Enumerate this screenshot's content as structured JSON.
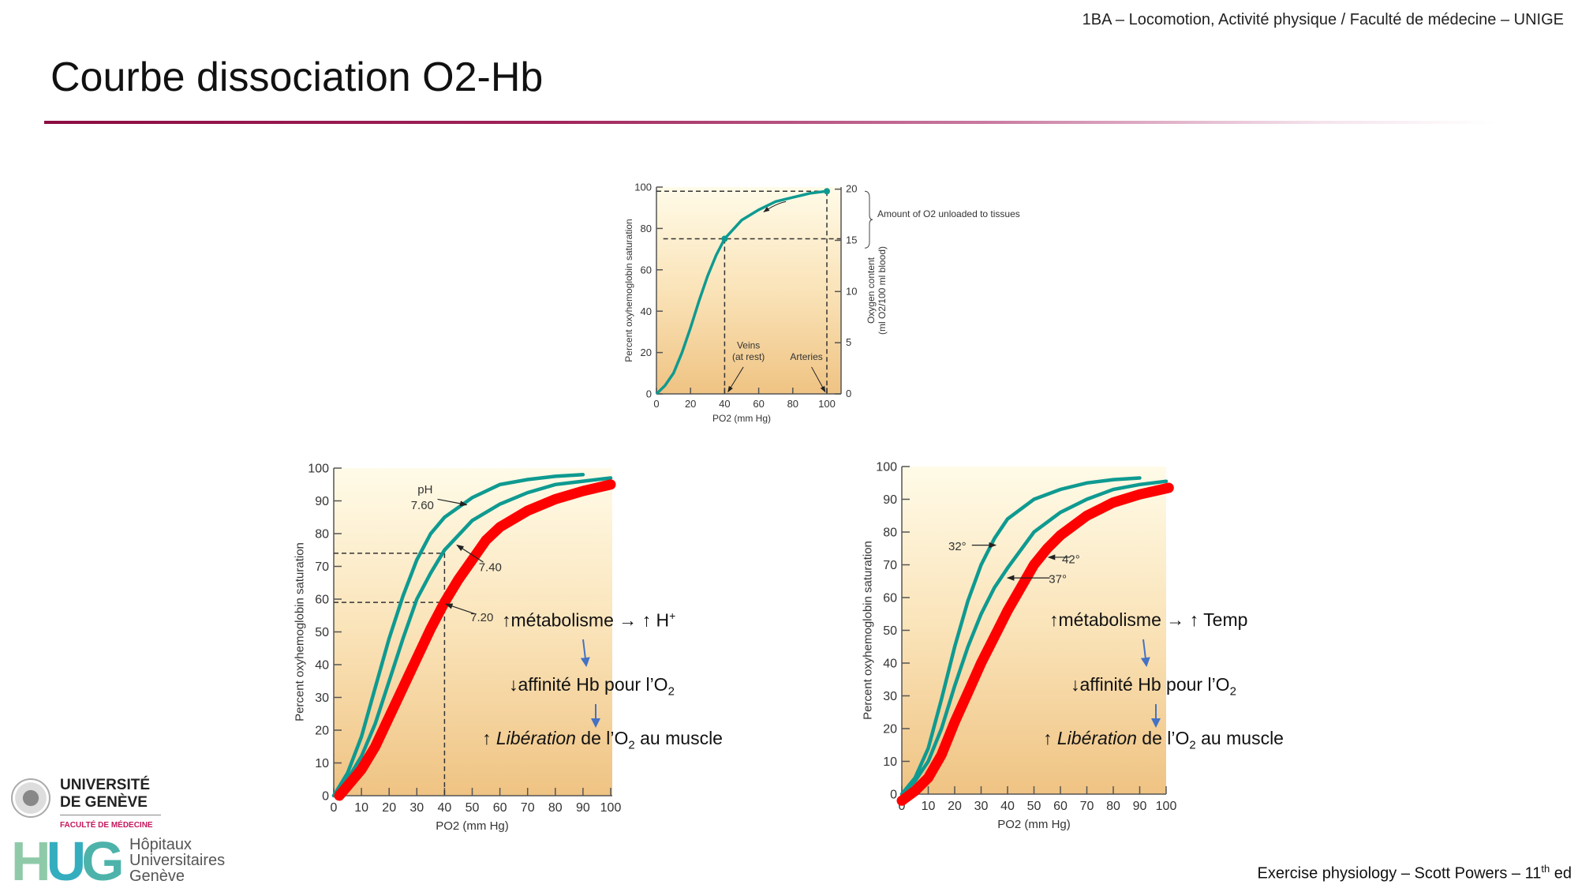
{
  "header": {
    "course": "1BA – Locomotion, Activité physique / Faculté de médecine – UNIGE"
  },
  "title": "Courbe dissociation O2-Hb",
  "footer": {
    "source": "Exercise physiology – Scott Powers – 11",
    "sup": "th",
    "edition": " ed"
  },
  "logos": {
    "unige_line1": "UNIVERSITÉ",
    "unige_line2": "DE GENÈVE",
    "unige_faculty": "FACULTÉ DE MÉDECINE",
    "hug_letters": "HUG",
    "hug_line1": "Hôpitaux",
    "hug_line2": "Universitaires",
    "hug_line3": "Genève"
  },
  "annotations_left": {
    "line1_prefix": "↑métabolisme ",
    "line1_arrow": "→",
    "line1_suffix": " ↑ H",
    "line1_sup": "+",
    "line2": "↓affinité Hb pour l’O",
    "line2_sub": "2",
    "line3_prefix": "↑ ",
    "line3_italic": "Libération",
    "line3_mid": " de l’O",
    "line3_sub": "2",
    "line3_suffix": " au muscle"
  },
  "annotations_right": {
    "line1_prefix": "↑métabolisme ",
    "line1_arrow": "→",
    "line1_suffix": " ↑ Temp",
    "line2": "↓affinité Hb pour l’O",
    "line2_sub": "2",
    "line3_prefix": "↑ ",
    "line3_italic": "Libération",
    "line3_mid": " de l’O",
    "line3_sub": "2",
    "line3_suffix": " au muscle"
  },
  "colors": {
    "teal": "#0e9a91",
    "red": "#ff0000",
    "blue_arrow": "#4472c4",
    "rule": "#8c0c42"
  },
  "chart_data": [
    {
      "type": "line",
      "title": "",
      "xlabel": "PO2 (mm Hg)",
      "ylabel": "Percent oxyhemoglobin saturation",
      "y2label_line1": "Oxygen content",
      "y2label_line2": "(ml O2/100 ml blood)",
      "xlim": [
        0,
        108
      ],
      "ylim": [
        0,
        100
      ],
      "y2lim": [
        0,
        20
      ],
      "xticks": [
        "0",
        "20",
        "40",
        "60",
        "80",
        "100"
      ],
      "yticks": [
        "0",
        "20",
        "40",
        "60",
        "80",
        "100"
      ],
      "y2ticks": [
        "0",
        "5",
        "10",
        "15",
        "20"
      ],
      "series": [
        {
          "name": "Oxyhemoglobin",
          "x": [
            0,
            5,
            10,
            15,
            20,
            25,
            30,
            35,
            40,
            50,
            60,
            70,
            80,
            90,
            100
          ],
          "y": [
            0,
            4,
            10,
            20,
            32,
            45,
            57,
            67,
            75,
            84,
            89,
            93,
            95,
            97,
            98
          ]
        }
      ],
      "markers": [
        {
          "x": 40,
          "y": 75
        },
        {
          "x": 100,
          "y": 98
        }
      ],
      "labels": {
        "veins1": "Veins",
        "veins2": "(at rest)",
        "arteries": "Arteries",
        "unloaded": "Amount of O2 unloaded to tissues"
      }
    },
    {
      "type": "line",
      "xlabel": "PO2 (mm Hg)",
      "ylabel": "Percent oxyhemoglobin saturation",
      "xlim": [
        0,
        100
      ],
      "ylim": [
        0,
        100
      ],
      "xticks": [
        "0",
        "10",
        "20",
        "30",
        "40",
        "50",
        "60",
        "70",
        "80",
        "90",
        "100"
      ],
      "yticks": [
        "0",
        "10",
        "20",
        "30",
        "40",
        "50",
        "60",
        "70",
        "80",
        "90",
        "100"
      ],
      "series": [
        {
          "name": "pH 7.60",
          "label": "7.60",
          "x": [
            0,
            5,
            10,
            15,
            20,
            25,
            30,
            35,
            40,
            50,
            60,
            70,
            80,
            90
          ],
          "y": [
            0,
            7,
            18,
            33,
            48,
            61,
            72,
            80,
            85,
            91,
            95,
            96.5,
            97.5,
            98
          ]
        },
        {
          "name": "pH 7.40",
          "label": "7.40",
          "x": [
            0,
            5,
            10,
            15,
            20,
            25,
            30,
            35,
            40,
            50,
            60,
            70,
            80,
            90,
            100
          ],
          "y": [
            0,
            5,
            12,
            22,
            35,
            48,
            60,
            68,
            75,
            84,
            89,
            92.5,
            95,
            96,
            97
          ]
        },
        {
          "name": "pH 7.20",
          "label": "7.20",
          "x": [
            2,
            5,
            10,
            15,
            20,
            25,
            30,
            35,
            40,
            45,
            50,
            55,
            60,
            70,
            80,
            90,
            100
          ],
          "y": [
            0,
            3,
            8,
            15,
            24,
            33,
            42,
            51,
            59,
            66,
            72,
            78,
            82,
            87,
            90.5,
            93,
            95
          ]
        }
      ],
      "ph_label": "pH",
      "reference_lines": [
        {
          "sat": 74,
          "po2": 40
        },
        {
          "sat": 59,
          "po2": 40
        }
      ]
    },
    {
      "type": "line",
      "xlabel": "PO2 (mm Hg)",
      "ylabel": "Percent oxyhemoglobin saturation",
      "xlim": [
        0,
        100
      ],
      "ylim": [
        0,
        100
      ],
      "xticks": [
        "0",
        "10",
        "20",
        "30",
        "40",
        "50",
        "60",
        "70",
        "80",
        "90",
        "100"
      ],
      "yticks": [
        "0",
        "10",
        "20",
        "30",
        "40",
        "50",
        "60",
        "70",
        "80",
        "90",
        "100"
      ],
      "series": [
        {
          "name": "32°",
          "label": "32°",
          "x": [
            0,
            5,
            10,
            15,
            20,
            25,
            30,
            35,
            40,
            50,
            60,
            70,
            80,
            90
          ],
          "y": [
            0,
            5,
            14,
            29,
            45,
            59,
            70,
            78,
            84,
            90,
            93,
            95,
            96,
            96.5
          ]
        },
        {
          "name": "37°",
          "label": "37°",
          "x": [
            0,
            5,
            10,
            15,
            20,
            25,
            30,
            35,
            40,
            50,
            60,
            70,
            80,
            90,
            100
          ],
          "y": [
            0,
            4,
            10,
            20,
            33,
            45,
            55,
            63,
            69,
            80,
            86,
            90,
            93,
            94.5,
            95.5
          ]
        },
        {
          "name": "42°",
          "label": "42°",
          "x": [
            0,
            5,
            10,
            15,
            20,
            25,
            30,
            35,
            40,
            45,
            50,
            55,
            60,
            70,
            80,
            90,
            101
          ],
          "y": [
            -2,
            1,
            5,
            12,
            22,
            31,
            40,
            48,
            56,
            63,
            70,
            75,
            79,
            85,
            89,
            91.5,
            93.5
          ]
        }
      ]
    }
  ]
}
